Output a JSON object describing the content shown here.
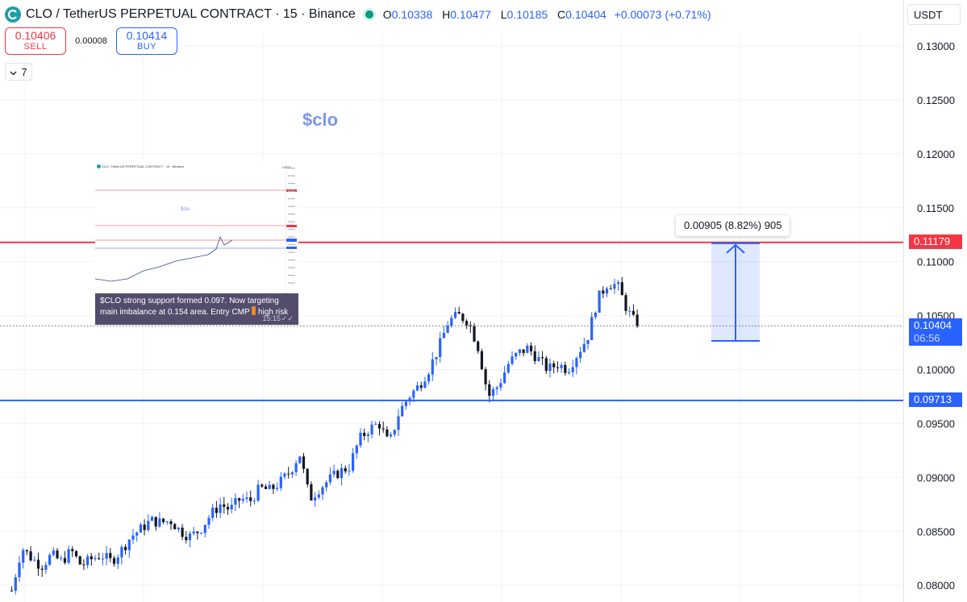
{
  "header": {
    "title": "CLO / TetherUS PERPETUAL CONTRACT · 15 · Binance",
    "ohlc": {
      "o_label": "O",
      "o": "0.10338",
      "h_label": "H",
      "h": "0.10477",
      "l_label": "L",
      "l": "0.10185",
      "c_label": "C",
      "c": "0.10404",
      "change": "+0.00073 (+0.71%)"
    }
  },
  "trade": {
    "sell_price": "0.10406",
    "sell_label": "SELL",
    "spread": "0.00008",
    "buy_price": "0.10414",
    "buy_label": "BUY"
  },
  "indicators": {
    "count": "7"
  },
  "currency": "USDT",
  "chart_label": "$clo",
  "measure": {
    "label": "0.00905 (8.82%) 905",
    "from": 0.10265,
    "to": 0.1117
  },
  "price_tags": {
    "resistance": "0.11179",
    "support": "0.09713",
    "current_price": "0.10404",
    "countdown": "06:56"
  },
  "inset": {
    "header": "CLO / TetherUS PERPETUAL CONTRACT · 15 · Binance",
    "usdt": "USDT",
    "chart_label": "$clo",
    "caption": "$CLO strong support formed 0.097. Now targeting main imbalance at 0.154 area. Entry CMP",
    "caption_risk": "high risk",
    "time": "15:15",
    "ticks": "✓✓"
  },
  "chart_data": {
    "type": "candlestick",
    "title": "CLO / TetherUS PERPETUAL CONTRACT · 15 · Binance",
    "ylim": [
      0.0785,
      0.132
    ],
    "y_ticks": [
      "0.13000",
      "0.12500",
      "0.12000",
      "0.11500",
      "0.11000",
      "0.10500",
      "0.10000",
      "0.09500",
      "0.09000",
      "0.08500",
      "0.08000"
    ],
    "y_tick_values": [
      0.13,
      0.125,
      0.12,
      0.115,
      0.11,
      0.105,
      0.1,
      0.095,
      0.09,
      0.085,
      0.08
    ],
    "horizontal_lines": [
      {
        "name": "resistance",
        "value": 0.11179,
        "color": "#f23645"
      },
      {
        "name": "support",
        "value": 0.09713,
        "color": "#2962ff"
      }
    ],
    "current_price": 0.10404,
    "up_color": "#2962ff",
    "down_color": "#131722",
    "grid": true,
    "price_path": [
      0.0795,
      0.0835,
      0.0825,
      0.0818,
      0.0828,
      0.0822,
      0.0832,
      0.0818,
      0.0824,
      0.0828,
      0.0822,
      0.0832,
      0.0845,
      0.0852,
      0.086,
      0.0858,
      0.086,
      0.085,
      0.0845,
      0.0852,
      0.0865,
      0.0875,
      0.087,
      0.088,
      0.0878,
      0.089,
      0.0888,
      0.0895,
      0.0905,
      0.0922,
      0.088,
      0.089,
      0.0898,
      0.0905,
      0.091,
      0.0935,
      0.0945,
      0.095,
      0.093,
      0.096,
      0.0975,
      0.0985,
      0.1,
      0.102,
      0.1045,
      0.105,
      0.1045,
      0.102,
      0.0975,
      0.0985,
      0.1005,
      0.1015,
      0.102,
      0.101,
      0.1,
      0.1005,
      0.1,
      0.1015,
      0.103,
      0.1065,
      0.108,
      0.1078,
      0.1055,
      0.104
    ]
  }
}
